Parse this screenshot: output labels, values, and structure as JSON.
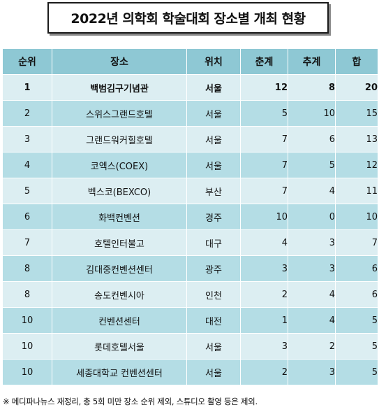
{
  "title": "2022년 의학회 학술대회 장소별 개최 현황",
  "table": {
    "headers": [
      "순위",
      "장소",
      "위치",
      "춘계",
      "추계",
      "합"
    ],
    "rows": [
      {
        "rank": "1",
        "venue": "백범김구기념관",
        "location": "서울",
        "spring": "12",
        "autumn": "8",
        "total": "20"
      },
      {
        "rank": "2",
        "venue": "스위스그랜드호텔",
        "location": "서울",
        "spring": "5",
        "autumn": "10",
        "total": "15"
      },
      {
        "rank": "3",
        "venue": "그랜드워커힐호텔",
        "location": "서울",
        "spring": "7",
        "autumn": "6",
        "total": "13"
      },
      {
        "rank": "4",
        "venue": "코엑스(COEX)",
        "location": "서울",
        "spring": "7",
        "autumn": "5",
        "total": "12"
      },
      {
        "rank": "5",
        "venue": "벡스코(BEXCO)",
        "location": "부산",
        "spring": "7",
        "autumn": "4",
        "total": "11"
      },
      {
        "rank": "6",
        "venue": "화백컨벤션",
        "location": "경주",
        "spring": "10",
        "autumn": "0",
        "total": "10"
      },
      {
        "rank": "7",
        "venue": "호텔인터불고",
        "location": "대구",
        "spring": "4",
        "autumn": "3",
        "total": "7"
      },
      {
        "rank": "8",
        "venue": "김대중컨벤션센터",
        "location": "광주",
        "spring": "3",
        "autumn": "3",
        "total": "6"
      },
      {
        "rank": "8",
        "venue": "송도컨벤시아",
        "location": "인천",
        "spring": "2",
        "autumn": "4",
        "total": "6"
      },
      {
        "rank": "10",
        "venue": "컨벤션센터",
        "location": "대전",
        "spring": "1",
        "autumn": "4",
        "total": "5"
      },
      {
        "rank": "10",
        "venue": "롯데호텔서울",
        "location": "서울",
        "spring": "3",
        "autumn": "2",
        "total": "5"
      },
      {
        "rank": "10",
        "venue": "세종대학교 컨벤션센터",
        "location": "서울",
        "spring": "2",
        "autumn": "3",
        "total": "5"
      }
    ]
  },
  "footnote": "※ 메디파나뉴스 재정리, 총 5회 미만 장소 순위 제외, 스튜디오 촬영 등은 제외."
}
